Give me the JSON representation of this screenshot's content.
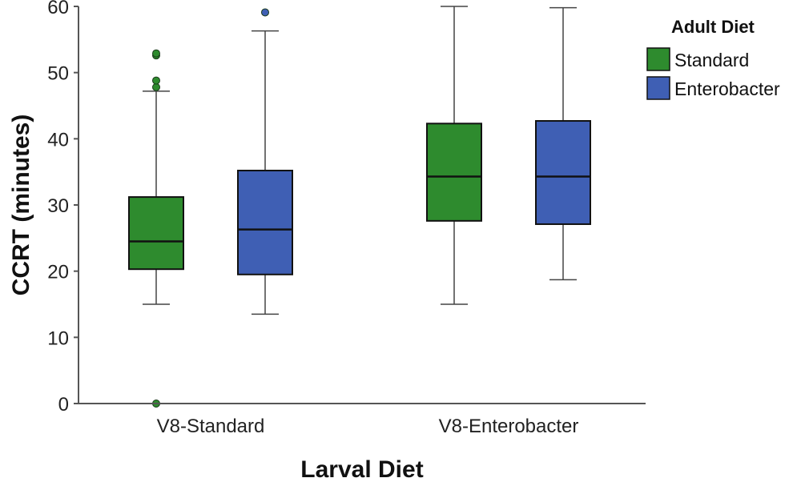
{
  "chart_data": {
    "type": "box",
    "xlabel": "Larval Diet",
    "ylabel": "CCRT (minutes)",
    "ylim": [
      0,
      60
    ],
    "yticks": [
      0,
      10,
      20,
      30,
      40,
      50,
      60
    ],
    "categories": [
      "V8-Standard",
      "V8-Enterobacter"
    ],
    "legend": {
      "title": "Adult Diet",
      "placement": "top-right"
    },
    "series": [
      {
        "name": "Standard",
        "color": "#2e8b2e",
        "boxes": [
          {
            "min": 15,
            "q1": 20.3,
            "median": 24.5,
            "q3": 31.2,
            "max": 47.2,
            "outliers": [
              0,
              47.8,
              48.8,
              52.6,
              52.9
            ]
          },
          {
            "min": 15,
            "q1": 27.6,
            "median": 34.3,
            "q3": 42.3,
            "max": 60,
            "outliers": []
          }
        ]
      },
      {
        "name": "Enterobacter",
        "color": "#3f5fb4",
        "boxes": [
          {
            "min": 13.5,
            "q1": 19.5,
            "median": 26.3,
            "q3": 35.2,
            "max": 56.3,
            "outliers": [
              59.1
            ]
          },
          {
            "min": 18.7,
            "q1": 27.1,
            "median": 34.3,
            "q3": 42.7,
            "max": 59.8,
            "outliers": []
          }
        ]
      }
    ]
  }
}
